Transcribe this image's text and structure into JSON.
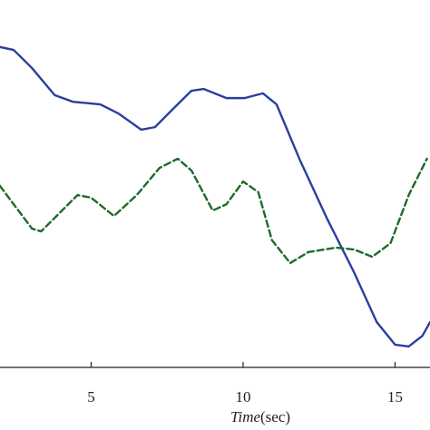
{
  "chart_data": {
    "type": "line",
    "xlabel": {
      "italic": "Time",
      "rest": "(sec)"
    },
    "xlim": [
      2.0,
      16.15
    ],
    "xticks": [
      5,
      10,
      15
    ],
    "ylim": [
      0,
      100
    ],
    "series": [
      {
        "color": "#2a3f9d",
        "dash": "solid",
        "x": [
          2.0,
          2.45,
          3.05,
          3.8,
          4.4,
          5.3,
          5.9,
          6.65,
          7.1,
          7.7,
          8.3,
          8.7,
          9.45,
          10.05,
          10.65,
          11.1,
          11.85,
          12.75,
          13.65,
          14.4,
          15.0,
          15.45,
          15.9,
          16.15
        ],
        "values": [
          87.2,
          86.4,
          81.5,
          74.1,
          72.3,
          71.6,
          69.1,
          64.7,
          65.4,
          70.4,
          75.3,
          75.8,
          73.3,
          73.3,
          74.6,
          71.6,
          56.8,
          40.7,
          25.9,
          12.3,
          6.2,
          5.7,
          8.6,
          12.3
        ]
      },
      {
        "color": "#1d6a2a",
        "dash": "dashed",
        "x": [
          2.0,
          2.45,
          3.05,
          3.35,
          3.8,
          4.55,
          5.0,
          5.75,
          6.5,
          7.25,
          7.85,
          8.3,
          9.0,
          9.45,
          10.0,
          10.5,
          10.95,
          11.55,
          12.15,
          13.05,
          13.65,
          14.25,
          14.85,
          15.45,
          16.05
        ],
        "values": [
          49.4,
          44.4,
          37.8,
          37.0,
          40.7,
          46.9,
          46.2,
          41.2,
          46.9,
          54.3,
          56.8,
          53.6,
          42.7,
          44.4,
          50.6,
          47.7,
          34.6,
          28.4,
          31.4,
          32.6,
          32.1,
          30.1,
          33.8,
          46.9,
          56.8
        ]
      }
    ]
  }
}
